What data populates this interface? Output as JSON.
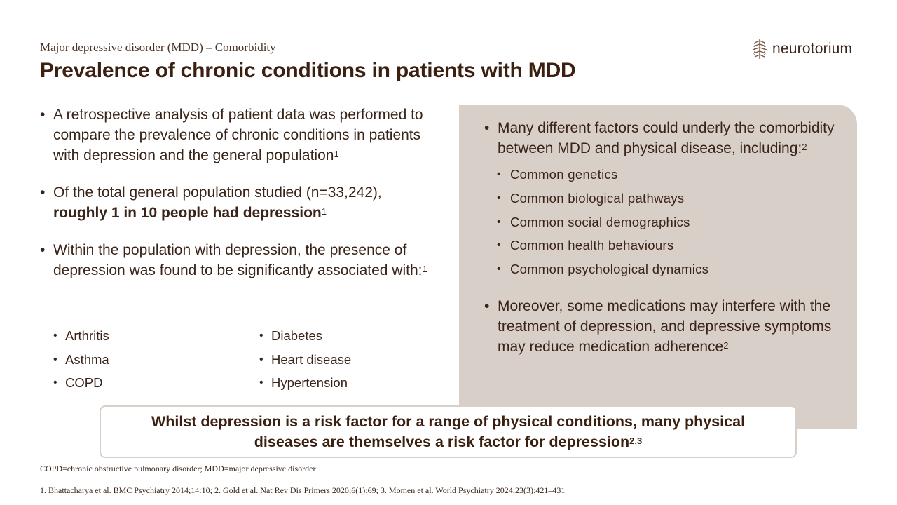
{
  "header": {
    "subtitle": "Major depressive disorder (MDD) – Comorbidity",
    "title": "Prevalence of chronic conditions in patients with MDD",
    "logo_text": "neurotorium"
  },
  "left": {
    "bullets": [
      {
        "text": "A retrospective analysis of patient data was performed to compare the prevalence of chronic conditions in patients with depression and the general population",
        "sup": "1"
      },
      {
        "text_plain": "Of the total general population studied (n=33,242), ",
        "text_bold": "roughly 1 in 10 people had depression",
        "sup": "1"
      },
      {
        "text": "Within the population with depression, the presence of depression was found to be significantly associated with:",
        "sup": "1"
      }
    ],
    "conditions_col1": [
      "Arthritis",
      "Asthma",
      "COPD"
    ],
    "conditions_col2": [
      "Diabetes",
      "Heart disease",
      "Hypertension"
    ]
  },
  "panel": {
    "bullet1": {
      "text": "Many different factors could underly the comorbidity between MDD and physical disease, including:",
      "sup": "2"
    },
    "factors": [
      "Common genetics",
      "Common biological pathways",
      "Common social demographics",
      "Common health behaviours",
      "Common psychological dynamics"
    ],
    "bullet2": {
      "text": "Moreover, some medications may interfere with the treatment of depression, and depressive symptoms may reduce medication adherence",
      "sup": "2"
    }
  },
  "callout": {
    "text": "Whilst depression is a risk factor for a range of physical conditions, many physical diseases are themselves a risk factor for depression",
    "sup": "2,3"
  },
  "footer": {
    "abbreviations": "COPD=chronic obstructive pulmonary disorder; MDD=major depressive disorder",
    "references": "1. Bhattacharya et al. BMC Psychiatry 2014;14:10; 2. Gold et al. Nat Rev Dis Primers 2020;6(1):69; 3. Momen et al. World Psychiatry 2024;23(3):421–431"
  },
  "colors": {
    "title": "#3b1f10",
    "text": "#3a2418",
    "panel_bg": "#d9cfc9"
  },
  "icons": {
    "logo": "neurotorium-logo-icon"
  }
}
